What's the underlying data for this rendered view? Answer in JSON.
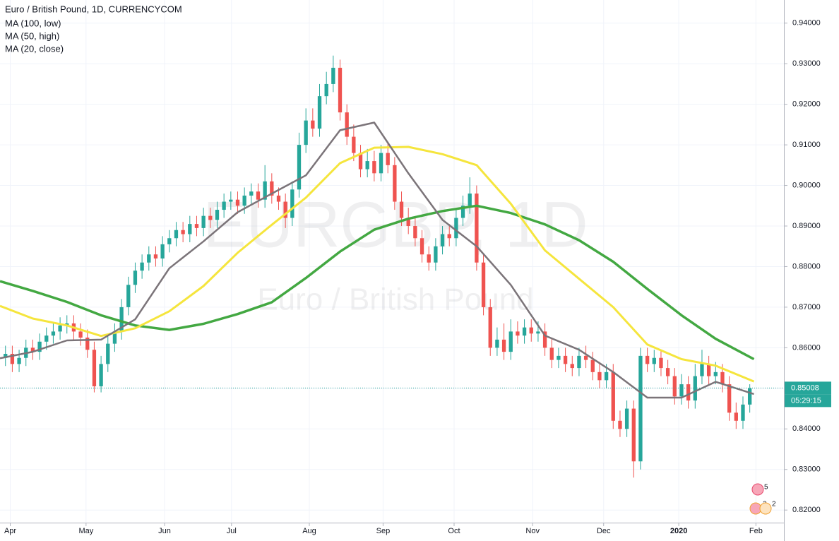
{
  "chart_data": {
    "type": "candlestick",
    "title": "Euro / British Pound, 1D, CURRENCYCOM",
    "watermark": "EURGBP, 1D",
    "watermark_subtitle": "Euro / British Pound",
    "xlim": [
      -0.8,
      114
    ],
    "xticks": [
      {
        "value": 0.7,
        "label": "Apr"
      },
      {
        "value": 11.8,
        "label": "May"
      },
      {
        "value": 23.3,
        "label": "Jun"
      },
      {
        "value": 33.1,
        "label": "Jul"
      },
      {
        "value": 44.5,
        "label": "Aug"
      },
      {
        "value": 55.3,
        "label": "Sep"
      },
      {
        "value": 65.7,
        "label": "Oct"
      },
      {
        "value": 77.2,
        "label": "Nov"
      },
      {
        "value": 87.6,
        "label": "Dec"
      },
      {
        "value": 98.6,
        "label": "2020"
      },
      {
        "value": 109.9,
        "label": "Feb"
      }
    ],
    "ylim": [
      0.8169,
      0.9457
    ],
    "yticks": [
      {
        "value": 0.82,
        "label": "0.82000"
      },
      {
        "value": 0.83,
        "label": "0.83000"
      },
      {
        "value": 0.84,
        "label": "0.84000"
      },
      {
        "value": 0.85,
        "label": "0.85000"
      },
      {
        "value": 0.86,
        "label": "0.86000"
      },
      {
        "value": 0.87,
        "label": "0.87000"
      },
      {
        "value": 0.88,
        "label": "0.88000"
      },
      {
        "value": 0.89,
        "label": "0.89000"
      },
      {
        "value": 0.9,
        "label": "0.90000"
      },
      {
        "value": 0.91,
        "label": "0.91000"
      },
      {
        "value": 0.92,
        "label": "0.92000"
      },
      {
        "value": 0.93,
        "label": "0.93000"
      },
      {
        "value": 0.94,
        "label": "0.94000"
      }
    ],
    "grid": true,
    "up_color": "#26a69a",
    "down_color": "#ef5350",
    "ohlc": {
      "open": [
        0.8575,
        0.8585,
        0.856,
        0.8575,
        0.86,
        0.859,
        0.8615,
        0.863,
        0.864,
        0.8655,
        0.866,
        0.864,
        0.8625,
        0.8595,
        0.8505,
        0.856,
        0.861,
        0.864,
        0.87,
        0.8755,
        0.879,
        0.881,
        0.883,
        0.882,
        0.8855,
        0.887,
        0.889,
        0.888,
        0.8905,
        0.8895,
        0.8925,
        0.8915,
        0.894,
        0.896,
        0.8965,
        0.895,
        0.8975,
        0.8985,
        0.8965,
        0.901,
        0.8975,
        0.896,
        0.892,
        0.899,
        0.91,
        0.916,
        0.914,
        0.922,
        0.925,
        0.929,
        0.918,
        0.912,
        0.908,
        0.904,
        0.906,
        0.903,
        0.908,
        0.905,
        0.896,
        0.892,
        0.89,
        0.887,
        0.883,
        0.881,
        0.885,
        0.888,
        0.887,
        0.892,
        0.895,
        0.898,
        0.881,
        0.87,
        0.86,
        0.862,
        0.859,
        0.864,
        0.863,
        0.865,
        0.8635,
        0.864,
        0.86,
        0.857,
        0.858,
        0.856,
        0.855,
        0.858,
        0.857,
        0.854,
        0.852,
        0.854,
        0.842,
        0.84,
        0.845,
        0.832,
        0.858,
        0.856,
        0.8575,
        0.855,
        0.853,
        0.848,
        0.851,
        0.847,
        0.853,
        0.856,
        0.853,
        0.854,
        0.851,
        0.844,
        0.842,
        0.846
      ],
      "high": [
        0.8605,
        0.8605,
        0.8595,
        0.862,
        0.862,
        0.8635,
        0.865,
        0.866,
        0.8675,
        0.868,
        0.868,
        0.866,
        0.8645,
        0.8615,
        0.858,
        0.863,
        0.866,
        0.872,
        0.8775,
        0.881,
        0.883,
        0.885,
        0.885,
        0.8875,
        0.889,
        0.891,
        0.891,
        0.8925,
        0.8925,
        0.8945,
        0.8945,
        0.896,
        0.898,
        0.8985,
        0.8985,
        0.8995,
        0.9005,
        0.9005,
        0.905,
        0.903,
        0.8995,
        0.898,
        0.901,
        0.913,
        0.919,
        0.919,
        0.925,
        0.928,
        0.932,
        0.931,
        0.92,
        0.915,
        0.91,
        0.909,
        0.9085,
        0.91,
        0.9105,
        0.907,
        0.8985,
        0.8945,
        0.892,
        0.889,
        0.885,
        0.887,
        0.89,
        0.8905,
        0.894,
        0.8975,
        0.902,
        0.9,
        0.883,
        0.872,
        0.865,
        0.866,
        0.867,
        0.8665,
        0.867,
        0.867,
        0.8665,
        0.866,
        0.8625,
        0.86,
        0.86,
        0.858,
        0.86,
        0.8605,
        0.859,
        0.8565,
        0.856,
        0.856,
        0.8445,
        0.847,
        0.847,
        0.86,
        0.86,
        0.8595,
        0.8595,
        0.857,
        0.855,
        0.8535,
        0.853,
        0.856,
        0.8595,
        0.858,
        0.8565,
        0.856,
        0.853,
        0.8465,
        0.848,
        0.851
      ],
      "low": [
        0.8555,
        0.854,
        0.854,
        0.8555,
        0.857,
        0.857,
        0.8595,
        0.861,
        0.862,
        0.8635,
        0.862,
        0.8605,
        0.8575,
        0.849,
        0.849,
        0.854,
        0.859,
        0.862,
        0.868,
        0.8735,
        0.877,
        0.879,
        0.88,
        0.88,
        0.8835,
        0.885,
        0.886,
        0.886,
        0.8875,
        0.8875,
        0.8895,
        0.8895,
        0.892,
        0.894,
        0.893,
        0.893,
        0.8955,
        0.8945,
        0.8945,
        0.8955,
        0.894,
        0.8895,
        0.89,
        0.897,
        0.908,
        0.912,
        0.912,
        0.92,
        0.923,
        0.916,
        0.91,
        0.906,
        0.902,
        0.902,
        0.901,
        0.901,
        0.903,
        0.894,
        0.89,
        0.888,
        0.885,
        0.881,
        0.879,
        0.879,
        0.883,
        0.885,
        0.885,
        0.89,
        0.893,
        0.879,
        0.868,
        0.858,
        0.858,
        0.857,
        0.857,
        0.861,
        0.861,
        0.8615,
        0.8615,
        0.858,
        0.855,
        0.855,
        0.854,
        0.853,
        0.853,
        0.855,
        0.852,
        0.85,
        0.85,
        0.84,
        0.838,
        0.838,
        0.828,
        0.83,
        0.854,
        0.854,
        0.853,
        0.851,
        0.846,
        0.846,
        0.845,
        0.845,
        0.851,
        0.851,
        0.851,
        0.849,
        0.842,
        0.84,
        0.84,
        0.844
      ],
      "close": [
        0.8585,
        0.856,
        0.8575,
        0.86,
        0.859,
        0.8615,
        0.863,
        0.864,
        0.8655,
        0.866,
        0.864,
        0.8625,
        0.8595,
        0.8505,
        0.856,
        0.861,
        0.864,
        0.87,
        0.8755,
        0.879,
        0.881,
        0.883,
        0.882,
        0.8855,
        0.887,
        0.889,
        0.888,
        0.8905,
        0.8895,
        0.8925,
        0.8915,
        0.894,
        0.896,
        0.8965,
        0.895,
        0.8975,
        0.8985,
        0.8965,
        0.901,
        0.8975,
        0.896,
        0.892,
        0.899,
        0.91,
        0.916,
        0.914,
        0.922,
        0.925,
        0.929,
        0.918,
        0.912,
        0.908,
        0.904,
        0.906,
        0.903,
        0.908,
        0.905,
        0.896,
        0.892,
        0.89,
        0.887,
        0.883,
        0.881,
        0.885,
        0.888,
        0.887,
        0.892,
        0.895,
        0.898,
        0.881,
        0.87,
        0.86,
        0.862,
        0.859,
        0.864,
        0.863,
        0.865,
        0.8635,
        0.864,
        0.86,
        0.857,
        0.858,
        0.856,
        0.855,
        0.858,
        0.857,
        0.854,
        0.852,
        0.854,
        0.842,
        0.84,
        0.845,
        0.832,
        0.858,
        0.856,
        0.8575,
        0.855,
        0.853,
        0.848,
        0.851,
        0.847,
        0.853,
        0.856,
        0.853,
        0.854,
        0.851,
        0.844,
        0.842,
        0.846,
        0.85
      ]
    },
    "ma_x": [
      -0.8,
      4,
      9,
      14,
      19,
      24,
      29,
      34,
      39,
      44,
      49,
      54,
      59,
      64,
      69,
      74,
      79,
      84,
      89,
      94,
      99,
      104,
      109.6
    ],
    "series": [
      {
        "name": "MA (100, low)",
        "color": "#43a842",
        "width": 3.5,
        "values": [
          0.8764,
          0.874,
          0.8713,
          0.868,
          0.8655,
          0.8644,
          0.8659,
          0.8683,
          0.8712,
          0.8772,
          0.8837,
          0.8891,
          0.8918,
          0.8937,
          0.895,
          0.8932,
          0.8904,
          0.8865,
          0.8812,
          0.8745,
          0.868,
          0.8622,
          0.8572
        ]
      },
      {
        "name": "MA (50, high)",
        "color": "#f5e53d",
        "width": 3,
        "values": [
          0.8703,
          0.8672,
          0.8655,
          0.8629,
          0.8648,
          0.869,
          0.8752,
          0.8834,
          0.8903,
          0.897,
          0.9055,
          0.9093,
          0.9095,
          0.9077,
          0.905,
          0.8955,
          0.884,
          0.877,
          0.87,
          0.8608,
          0.8572,
          0.8556,
          0.8517
        ]
      },
      {
        "name": "MA (20, close)",
        "color": "#7b7479",
        "width": 2.5,
        "values": [
          0.8574,
          0.859,
          0.8618,
          0.862,
          0.867,
          0.8796,
          0.8862,
          0.8934,
          0.898,
          0.9025,
          0.9136,
          0.9155,
          0.903,
          0.8915,
          0.885,
          0.8755,
          0.863,
          0.8595,
          0.854,
          0.8477,
          0.8477,
          0.8516,
          0.8486
        ]
      }
    ],
    "last_price": 0.85008,
    "countdown": "05:29:15",
    "badges": [
      "5",
      "2",
      "2"
    ]
  }
}
